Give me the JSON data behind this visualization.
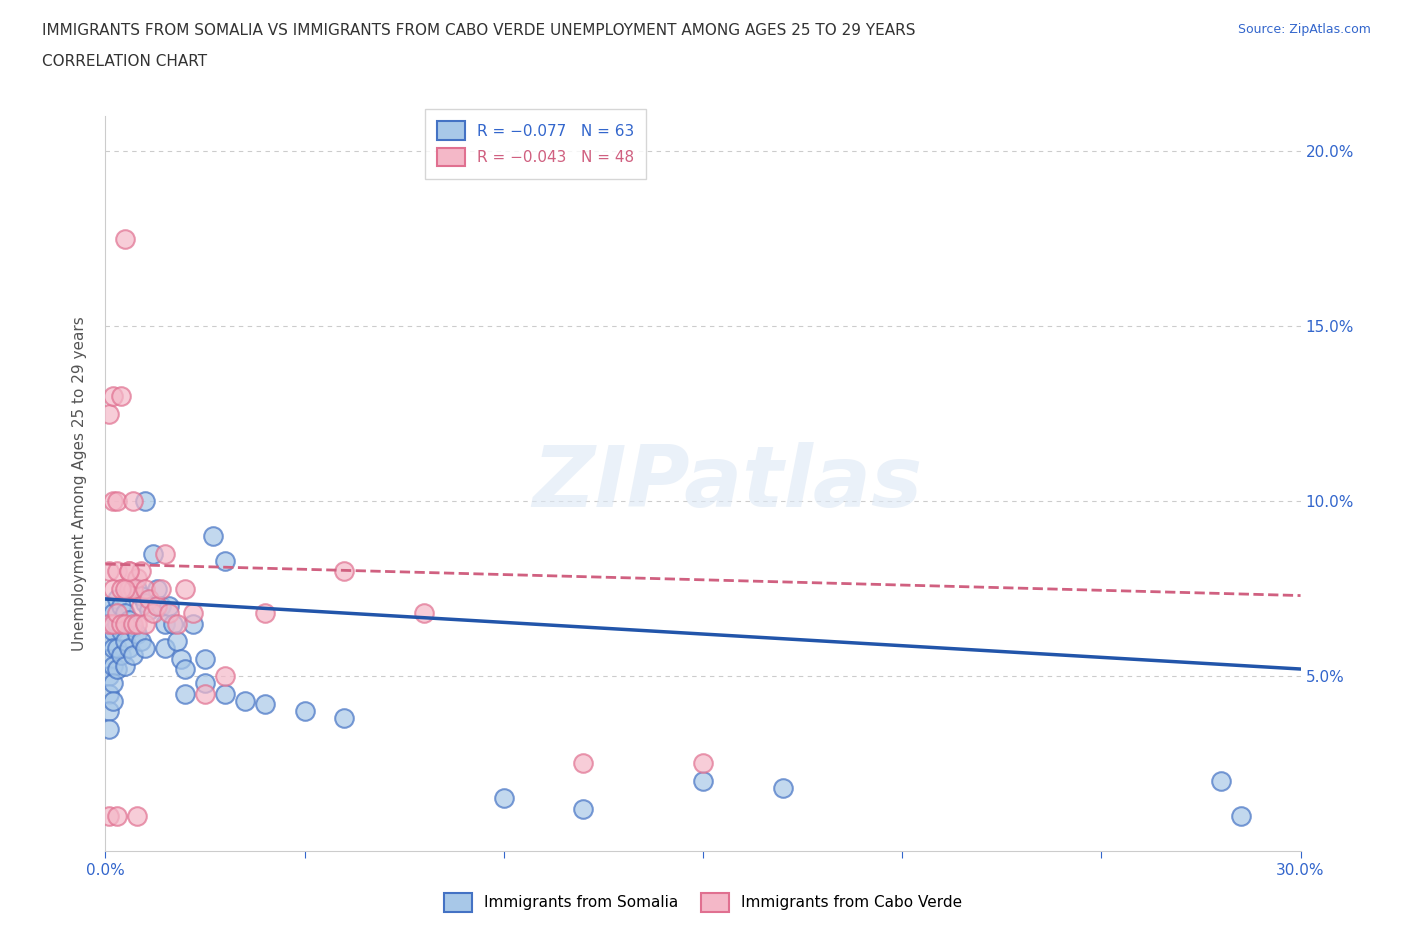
{
  "title_line1": "IMMIGRANTS FROM SOMALIA VS IMMIGRANTS FROM CABO VERDE UNEMPLOYMENT AMONG AGES 25 TO 29 YEARS",
  "title_line2": "CORRELATION CHART",
  "source": "Source: ZipAtlas.com",
  "ylabel": "Unemployment Among Ages 25 to 29 years",
  "xlim": [
    0.0,
    0.3
  ],
  "ylim": [
    0.0,
    0.21
  ],
  "somalia_color": "#a8c8e8",
  "cabo_verde_color": "#f4b8c8",
  "somalia_edge_color": "#4472c4",
  "cabo_verde_edge_color": "#e07090",
  "somalia_line_color": "#2255aa",
  "cabo_verde_line_color": "#d06080",
  "watermark_text": "ZIPatlas",
  "somalia_x": [
    0.001,
    0.001,
    0.001,
    0.001,
    0.001,
    0.001,
    0.001,
    0.001,
    0.002,
    0.002,
    0.002,
    0.002,
    0.002,
    0.002,
    0.003,
    0.003,
    0.003,
    0.003,
    0.004,
    0.004,
    0.004,
    0.005,
    0.005,
    0.005,
    0.006,
    0.006,
    0.007,
    0.007,
    0.008,
    0.008,
    0.009,
    0.009,
    0.01,
    0.01,
    0.011,
    0.012,
    0.013,
    0.014,
    0.015,
    0.015,
    0.016,
    0.017,
    0.018,
    0.019,
    0.02,
    0.022,
    0.025,
    0.025,
    0.027,
    0.03,
    0.035,
    0.04,
    0.05,
    0.06,
    0.1,
    0.12,
    0.15,
    0.17,
    0.28,
    0.285,
    0.01,
    0.02,
    0.03
  ],
  "somalia_y": [
    0.07,
    0.065,
    0.06,
    0.055,
    0.05,
    0.045,
    0.04,
    0.035,
    0.068,
    0.063,
    0.058,
    0.053,
    0.048,
    0.043,
    0.072,
    0.065,
    0.058,
    0.052,
    0.07,
    0.063,
    0.056,
    0.068,
    0.06,
    0.053,
    0.066,
    0.058,
    0.064,
    0.056,
    0.075,
    0.062,
    0.073,
    0.06,
    0.071,
    0.058,
    0.069,
    0.085,
    0.075,
    0.07,
    0.065,
    0.058,
    0.07,
    0.065,
    0.06,
    0.055,
    0.052,
    0.065,
    0.055,
    0.048,
    0.09,
    0.045,
    0.043,
    0.042,
    0.04,
    0.038,
    0.015,
    0.012,
    0.02,
    0.018,
    0.02,
    0.01,
    0.1,
    0.045,
    0.083
  ],
  "cabo_x": [
    0.001,
    0.001,
    0.001,
    0.001,
    0.002,
    0.002,
    0.002,
    0.003,
    0.003,
    0.003,
    0.004,
    0.004,
    0.005,
    0.005,
    0.006,
    0.006,
    0.007,
    0.007,
    0.008,
    0.008,
    0.009,
    0.009,
    0.01,
    0.01,
    0.011,
    0.012,
    0.013,
    0.014,
    0.015,
    0.016,
    0.018,
    0.02,
    0.022,
    0.025,
    0.03,
    0.04,
    0.06,
    0.08,
    0.12,
    0.15,
    0.002,
    0.003,
    0.004,
    0.005,
    0.006,
    0.007,
    0.008
  ],
  "cabo_y": [
    0.125,
    0.08,
    0.065,
    0.01,
    0.13,
    0.075,
    0.065,
    0.08,
    0.068,
    0.01,
    0.13,
    0.065,
    0.175,
    0.065,
    0.08,
    0.075,
    0.075,
    0.065,
    0.078,
    0.065,
    0.08,
    0.07,
    0.075,
    0.065,
    0.072,
    0.068,
    0.07,
    0.075,
    0.085,
    0.068,
    0.065,
    0.075,
    0.068,
    0.045,
    0.05,
    0.068,
    0.08,
    0.068,
    0.025,
    0.025,
    0.1,
    0.1,
    0.075,
    0.075,
    0.08,
    0.1,
    0.01
  ]
}
